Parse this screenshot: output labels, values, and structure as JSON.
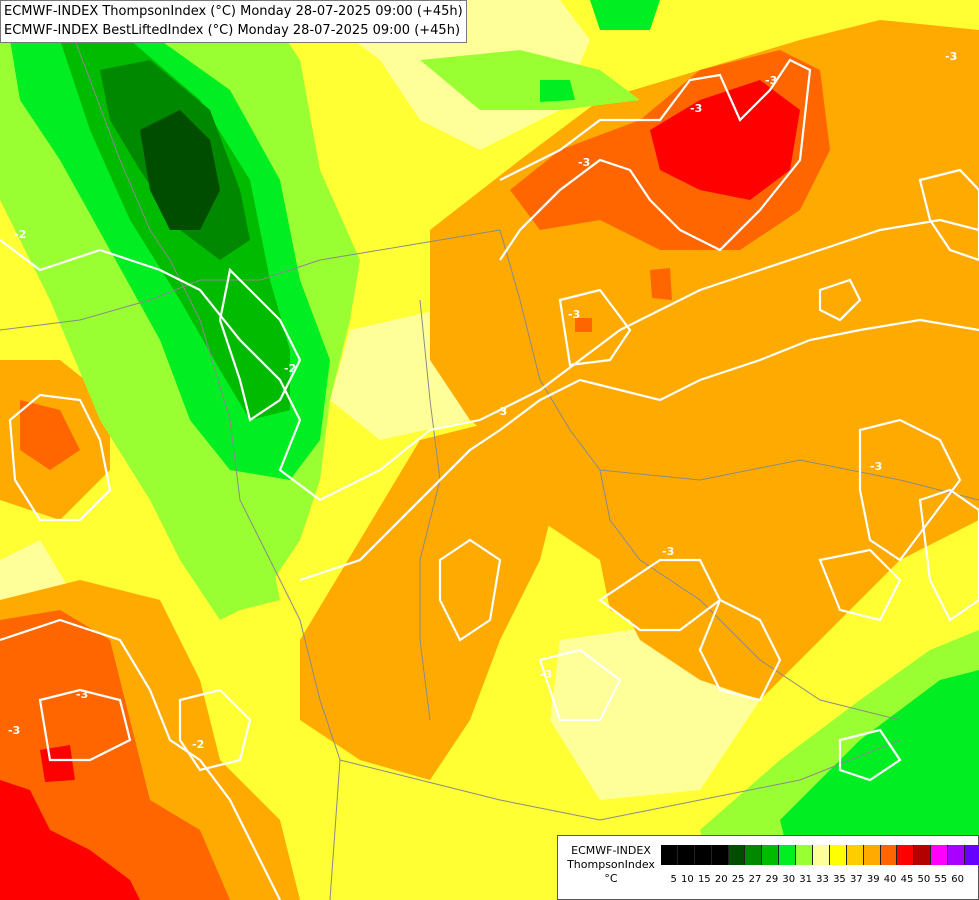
{
  "title": {
    "line1": "ECMWF-INDEX ThompsonIndex (°C) Monday 28-07-2025 09:00 (+45h)",
    "line2": "ECMWF-INDEX BestLiftedIndex (°C) Monday 28-07-2025 09:00 (+45h)"
  },
  "legend": {
    "model": "ECMWF-INDEX",
    "param": "ThompsonIndex",
    "unit": "°C",
    "ticks": [
      "5",
      "10",
      "15",
      "20",
      "25",
      "27",
      "29",
      "30",
      "31",
      "33",
      "35",
      "37",
      "39",
      "40",
      "45",
      "50",
      "55",
      "60"
    ],
    "colors": [
      "#000000",
      "#000000",
      "#000000",
      "#000000",
      "#004d00",
      "#008800",
      "#00bb00",
      "#00ee22",
      "#99ff33",
      "#ffff99",
      "#ffff00",
      "#ffcc00",
      "#ffaa00",
      "#ff6600",
      "#ff0000",
      "#b30000",
      "#ff00ff",
      "#aa00ff",
      "#6600ff",
      "#0000ff"
    ]
  },
  "contour_labels": [
    "-3",
    "-3",
    "-3",
    "-3",
    "-3",
    "-2",
    "-3",
    "-3",
    "-2",
    "-3",
    "-3",
    "-3",
    "-2",
    "-3"
  ],
  "colors": {
    "yellow": "#ffff00",
    "light_yellow": "#ffff99",
    "lime": "#99ff33",
    "green": "#00ee22",
    "mid_green": "#00bb00",
    "dark_green": "#008800",
    "darkest_green": "#004d00",
    "orange": "#ffaa00",
    "dark_orange": "#ff6600",
    "red": "#ff0000",
    "contour": "#ffffff"
  }
}
